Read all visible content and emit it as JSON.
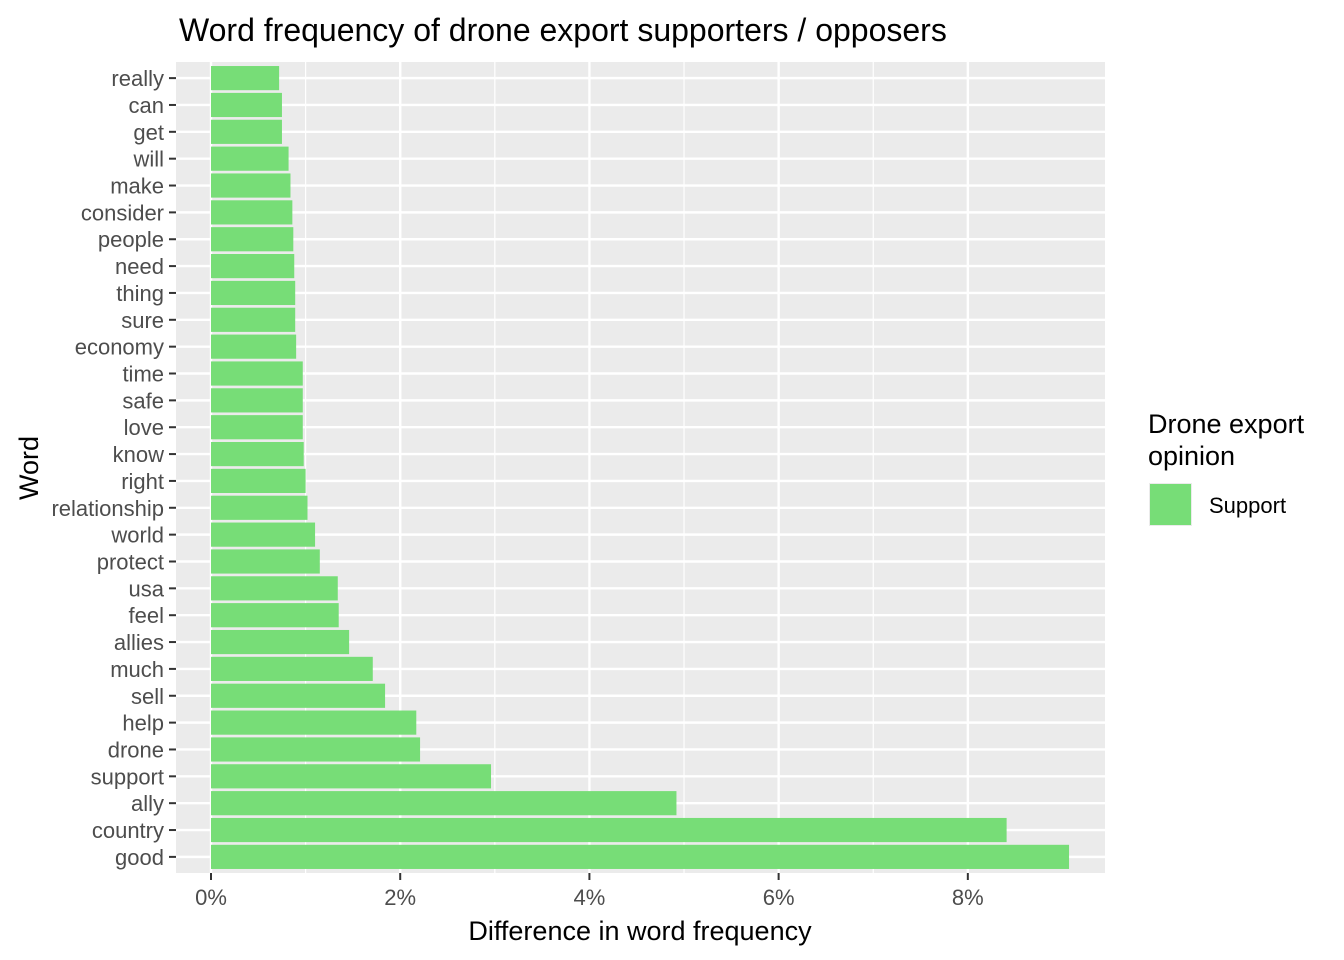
{
  "chart_data": {
    "type": "bar",
    "orientation": "horizontal",
    "title": "Word frequency of drone export supporters / opposers",
    "xlabel": "Difference in word frequency",
    "ylabel": "Word",
    "categories": [
      "good",
      "country",
      "ally",
      "support",
      "drone",
      "help",
      "sell",
      "much",
      "allies",
      "feel",
      "usa",
      "protect",
      "world",
      "relationship",
      "right",
      "know",
      "love",
      "safe",
      "time",
      "economy",
      "sure",
      "thing",
      "need",
      "people",
      "consider",
      "make",
      "will",
      "get",
      "can",
      "really"
    ],
    "series": [
      {
        "name": "Support",
        "color": "#77dd77",
        "values": [
          9.07,
          8.41,
          4.92,
          2.96,
          2.21,
          2.17,
          1.84,
          1.71,
          1.46,
          1.35,
          1.34,
          1.15,
          1.1,
          1.02,
          1.0,
          0.98,
          0.97,
          0.97,
          0.97,
          0.9,
          0.89,
          0.89,
          0.88,
          0.87,
          0.86,
          0.84,
          0.82,
          0.75,
          0.75,
          0.72
        ]
      }
    ],
    "xlim": [
      -0.37,
      9.45
    ],
    "xticks": [
      0,
      2,
      4,
      6,
      8
    ],
    "xtick_labels": [
      "0%",
      "2%",
      "4%",
      "6%",
      "8%"
    ],
    "grid": true,
    "panel_background": "#ebebeb",
    "grid_color": "#ffffff",
    "legend": {
      "title": "Drone export opinion",
      "title_lines": [
        "Drone export",
        "opinion"
      ],
      "placement": "right",
      "items": [
        {
          "label": "Support",
          "color": "#77dd77"
        }
      ]
    }
  }
}
